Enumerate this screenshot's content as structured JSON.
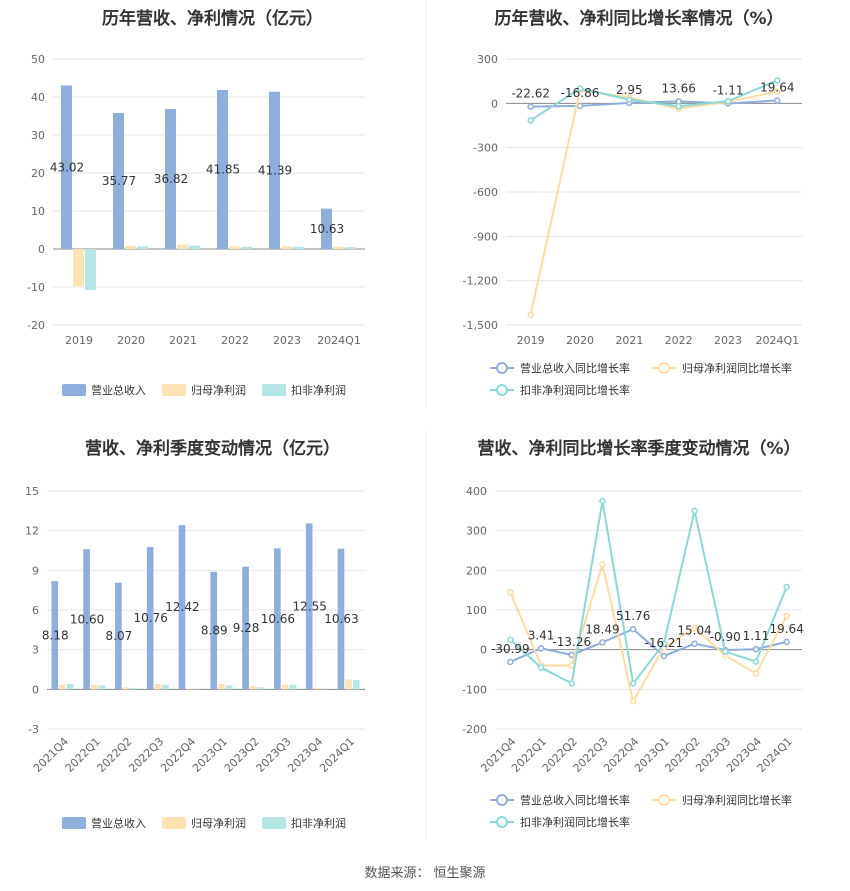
{
  "source": {
    "label": "数据来源：",
    "value": "恒生聚源"
  },
  "legend_labels": {
    "revenue": "营业总收入",
    "net_profit": "归母净利润",
    "deducted_profit": "扣非净利润",
    "revenue_growth": "营业总收入同比增长率",
    "net_profit_growth": "归母净利润同比增长率",
    "deducted_profit_growth": "扣非净利润同比增长率"
  },
  "colors": {
    "revenue": "#8eaedb",
    "net_profit": "#fce3b4",
    "deducted_profit": "#b4e6e6",
    "revenue_line": "#8eaedb",
    "net_profit_line": "#fcdca0",
    "deducted_profit_line": "#8ad8d8"
  },
  "chart_data": [
    {
      "type": "bar",
      "title": "历年营收、净利情况（亿元）",
      "categories": [
        "2019",
        "2020",
        "2021",
        "2022",
        "2023",
        "2024Q1"
      ],
      "yticks": [
        "50",
        "40",
        "30",
        "20",
        "10",
        "0",
        "-10",
        "-20"
      ],
      "ylim": [
        -20,
        50
      ],
      "series": [
        {
          "name": "营业总收入",
          "values": [
            43.02,
            35.77,
            36.82,
            41.85,
            41.39,
            10.63
          ],
          "labels": [
            "43.02",
            "35.77",
            "36.82",
            "41.85",
            "41.39",
            "10.63"
          ]
        },
        {
          "name": "归母净利润",
          "values": [
            -9.8,
            0.8,
            1.2,
            0.7,
            0.7,
            0.6
          ]
        },
        {
          "name": "扣非净利润",
          "values": [
            -10.8,
            0.7,
            0.9,
            0.6,
            0.6,
            0.5
          ]
        }
      ],
      "legend": "bottom"
    },
    {
      "type": "line",
      "title": "历年营收、净利同比增长率情况（%）",
      "categories": [
        "2019",
        "2020",
        "2021",
        "2022",
        "2023",
        "2024Q1"
      ],
      "yticks": [
        "300",
        "0",
        "-300",
        "-600",
        "-900",
        "-1,200",
        "-1,500"
      ],
      "ylim": [
        -1500,
        300
      ],
      "series": [
        {
          "name": "营业总收入同比增长率",
          "values": [
            -22.62,
            -16.86,
            2.95,
            13.66,
            -1.11,
            19.64
          ],
          "labels": [
            "-22.62",
            "-16.86",
            "2.95",
            "13.66",
            "-1.11",
            "19.64"
          ]
        },
        {
          "name": "归母净利润同比增长率",
          "values": [
            -1430,
            90,
            40,
            -35,
            10,
            80
          ]
        },
        {
          "name": "扣非净利润同比增长率",
          "values": [
            -115,
            100,
            25,
            -20,
            15,
            155
          ]
        }
      ],
      "legend": "bottom"
    },
    {
      "type": "bar",
      "title": "营收、净利季度变动情况（亿元）",
      "categories": [
        "2021Q4",
        "2022Q1",
        "2022Q2",
        "2022Q3",
        "2022Q4",
        "2023Q1",
        "2023Q2",
        "2023Q3",
        "2023Q4",
        "2024Q1"
      ],
      "yticks": [
        "15",
        "12",
        "9",
        "6",
        "3",
        "0",
        "-3"
      ],
      "ylim": [
        -3,
        15
      ],
      "series": [
        {
          "name": "营业总收入",
          "values": [
            8.18,
            10.6,
            8.07,
            10.76,
            12.42,
            8.89,
            9.28,
            10.66,
            12.55,
            10.63
          ],
          "labels": [
            "8.18",
            "10.60",
            "8.07",
            "10.76",
            "12.42",
            "8.89",
            "9.28",
            "10.66",
            "12.55",
            "10.63"
          ]
        },
        {
          "name": "归母净利润",
          "values": [
            0.35,
            0.35,
            0.15,
            0.4,
            0.05,
            0.4,
            0.25,
            0.35,
            0.1,
            0.75
          ]
        },
        {
          "name": "扣非净利润",
          "values": [
            0.4,
            0.3,
            0.1,
            0.35,
            0.05,
            0.3,
            0.15,
            0.35,
            0.05,
            0.7
          ]
        }
      ],
      "legend": "bottom"
    },
    {
      "type": "line",
      "title": "营收、净利同比增长率季度变动情况（%）",
      "categories": [
        "2021Q4",
        "2022Q1",
        "2022Q2",
        "2022Q3",
        "2022Q4",
        "2023Q1",
        "2023Q2",
        "2023Q3",
        "2023Q4",
        "2024Q1"
      ],
      "yticks": [
        "400",
        "300",
        "200",
        "100",
        "0",
        "-100",
        "-200"
      ],
      "ylim": [
        -200,
        400
      ],
      "series": [
        {
          "name": "营业总收入同比增长率",
          "values": [
            -30.99,
            3.41,
            -13.26,
            18.49,
            51.76,
            -16.21,
            15.04,
            -0.9,
            1.11,
            19.64
          ],
          "labels": [
            "-30.99",
            "3.41",
            "-13.26",
            "18.49",
            "51.76",
            "-16.21",
            "15.04",
            "-0.90",
            "1.11",
            "19.64"
          ]
        },
        {
          "name": "归母净利润同比增长率",
          "values": [
            145,
            -40,
            -40,
            215,
            -130,
            5,
            55,
            -15,
            -60,
            85
          ]
        },
        {
          "name": "扣非净利润同比增长率",
          "values": [
            25,
            -45,
            -85,
            375,
            -85,
            15,
            350,
            -5,
            -30,
            158
          ]
        }
      ],
      "legend": "bottom"
    }
  ]
}
